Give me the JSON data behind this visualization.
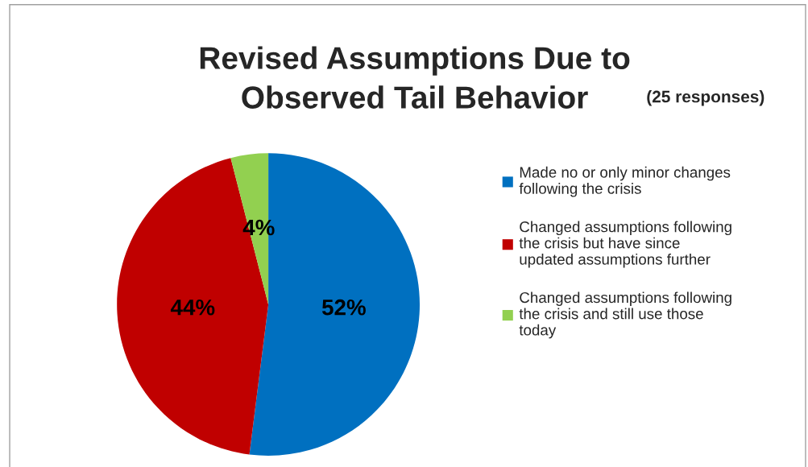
{
  "chart_data": {
    "type": "pie",
    "title": "Revised Assumptions Due to\nObserved Tail Behavior",
    "subtitle": "(25 responses)",
    "categories": [
      "Made no or only minor changes following the crisis",
      "Changed assumptions following the crisis but have since updated assumptions further",
      "Changed assumptions following the crisis and still use those today"
    ],
    "values": [
      52,
      44,
      4
    ],
    "value_labels": [
      "52%",
      "44%",
      "4%"
    ],
    "colors": [
      "#0070c0",
      "#c00000",
      "#92d050"
    ],
    "legend": "right"
  }
}
